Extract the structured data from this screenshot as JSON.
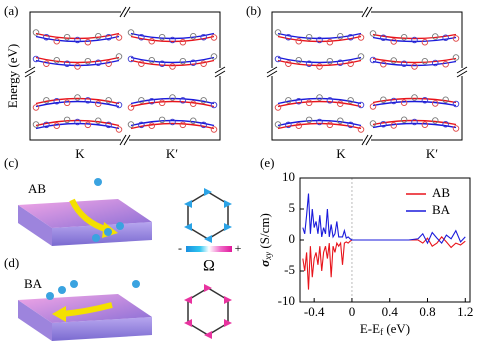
{
  "panels": {
    "a": {
      "label": "(a)",
      "ylabel": "Energy (eV)",
      "xlabels": [
        "K",
        "K′"
      ]
    },
    "b": {
      "label": "(b)",
      "xlabels": [
        "K",
        "K′"
      ]
    },
    "c": {
      "label": "(c)",
      "stacking": "AB"
    },
    "d": {
      "label": "(d)",
      "stacking": "BA"
    },
    "colorbar": {
      "min": "-",
      "max": "+",
      "symbol": "Ω"
    }
  },
  "chart_data": {
    "type": "line",
    "label": "(e)",
    "ylabel": [
      "σ",
      "xy",
      " (S/cm)"
    ],
    "xlabel": [
      "E-E",
      "f",
      " (eV)"
    ],
    "x": [
      -0.52,
      -0.5,
      -0.48,
      -0.46,
      -0.44,
      -0.42,
      -0.4,
      -0.38,
      -0.36,
      -0.34,
      -0.32,
      -0.3,
      -0.28,
      -0.26,
      -0.24,
      -0.22,
      -0.2,
      -0.18,
      -0.16,
      -0.14,
      -0.12,
      -0.1,
      -0.08,
      -0.06,
      -0.04,
      -0.02,
      0,
      0.1,
      0.2,
      0.3,
      0.4,
      0.5,
      0.6,
      0.7,
      0.75,
      0.8,
      0.85,
      0.9,
      0.95,
      1.0,
      1.05,
      1.1,
      1.15,
      1.2
    ],
    "series": [
      {
        "name": "AB",
        "color": "#e8141b",
        "values": [
          -3,
          -5,
          -2,
          -8,
          -1,
          -6,
          -3,
          -2,
          -4,
          -1,
          -5,
          -2,
          -1,
          -3,
          -0.5,
          -6,
          -1,
          -2,
          -0.5,
          -1,
          -0.5,
          -4,
          -0.5,
          -0.3,
          -0.5,
          -0.2,
          0,
          0,
          0,
          0,
          0,
          0,
          0,
          0,
          -0.5,
          0.3,
          -1,
          -0.5,
          0.5,
          -0.3,
          -1.2,
          -0.5,
          -0.8,
          -0.2
        ]
      },
      {
        "name": "BA",
        "color": "#1a1adb",
        "values": [
          2,
          1,
          4,
          7.5,
          1,
          5,
          2,
          3,
          1,
          4,
          0.5,
          2,
          1,
          5,
          0.5,
          2.5,
          0.5,
          1,
          3,
          0.5,
          0.5,
          0.5,
          1.5,
          0.3,
          0.5,
          0.2,
          0,
          0,
          0,
          0,
          0,
          0,
          0,
          0.2,
          1,
          -0.5,
          1.2,
          0.3,
          -0.5,
          0.8,
          0.2,
          1.5,
          -0.3,
          0.5
        ]
      }
    ],
    "xlim": [
      -0.55,
      1.25
    ],
    "ylim": [
      -10,
      10
    ],
    "xticks": [
      -0.4,
      0,
      0.4,
      0.8,
      1.2
    ],
    "yticks": [
      -10,
      -5,
      0,
      5,
      10
    ],
    "legend": "upper right"
  }
}
